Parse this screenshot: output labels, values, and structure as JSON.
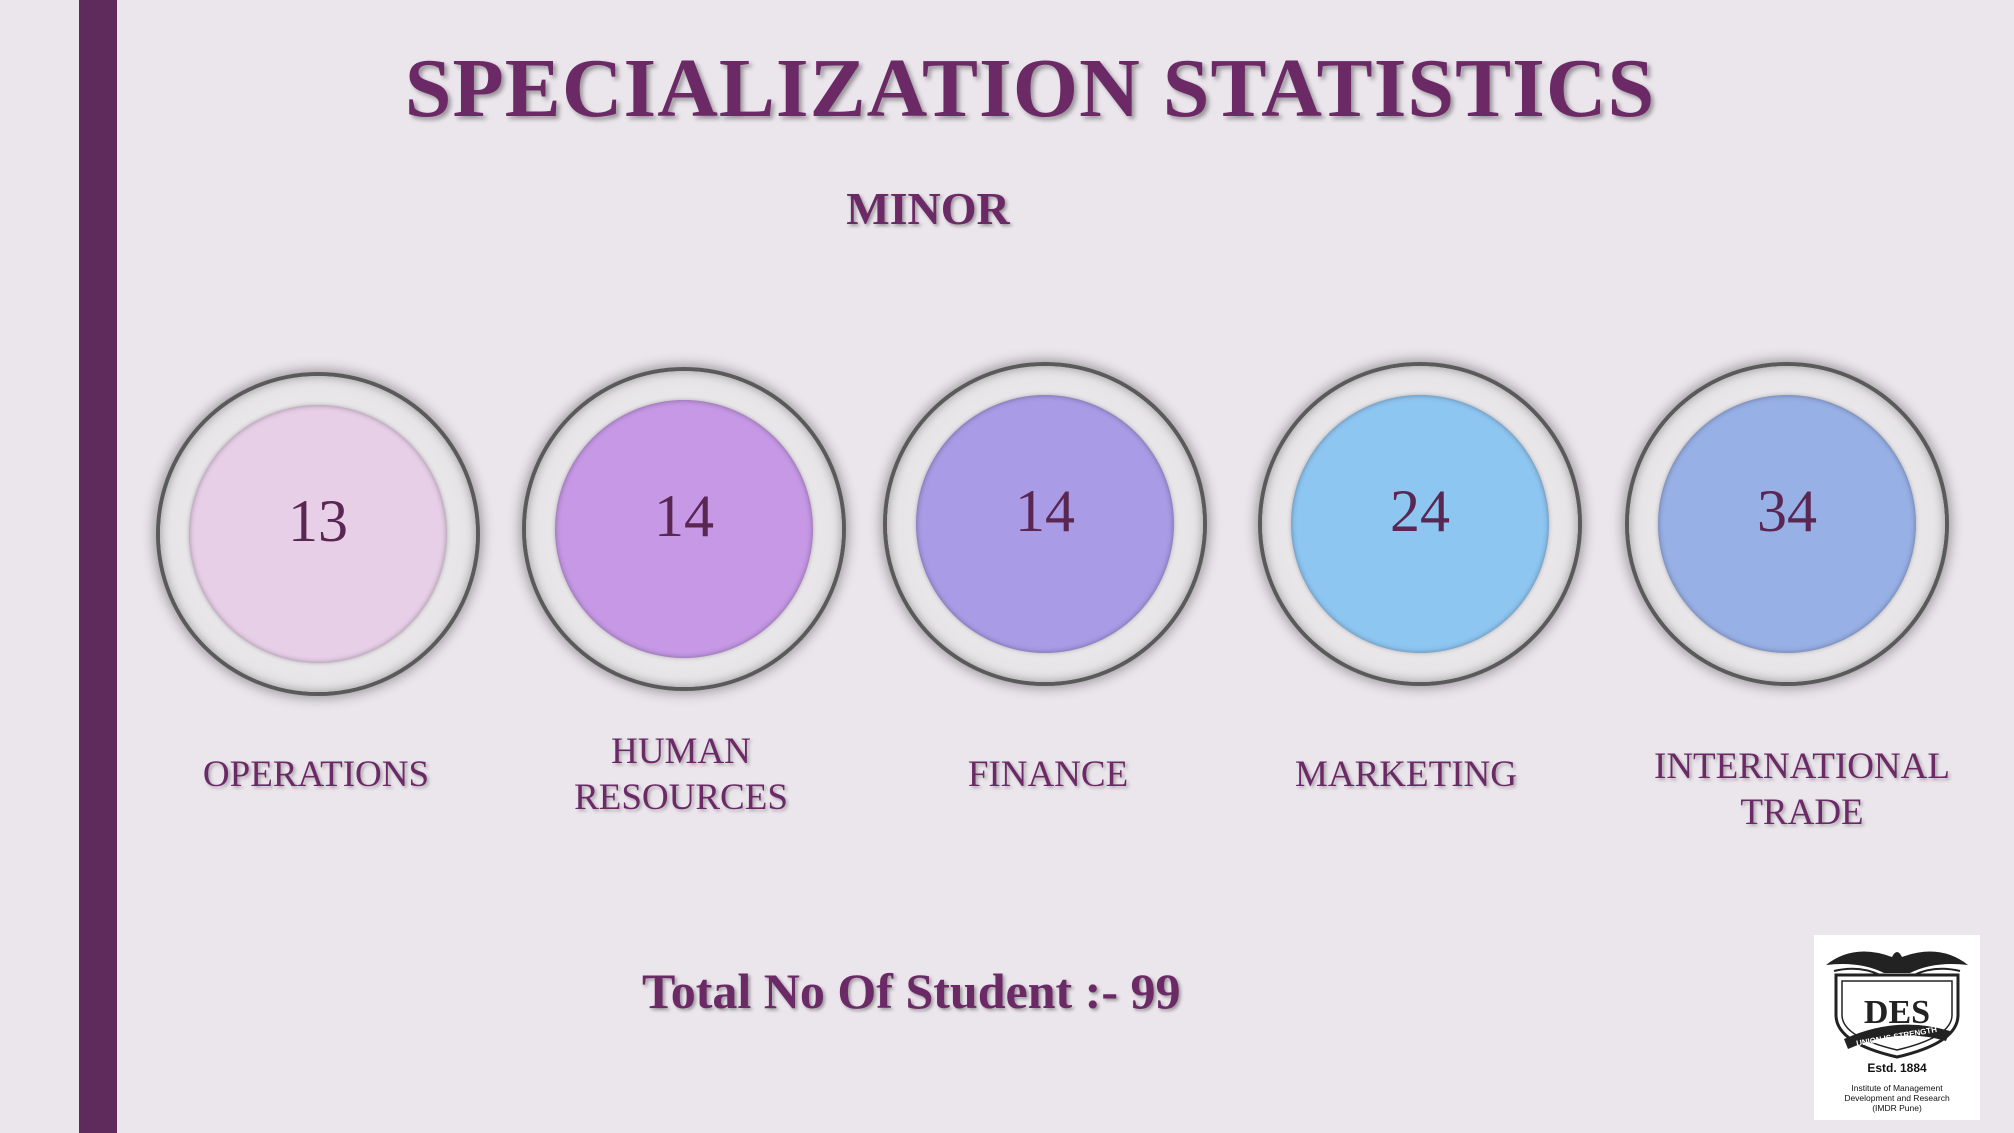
{
  "title": "SPECIALIZATION STATISTICS",
  "subtitle": "MINOR",
  "items": [
    {
      "value": "13",
      "label_lines": [
        "OPERATIONS"
      ],
      "color": "#e8cfe8"
    },
    {
      "value": "14",
      "label_lines": [
        "HUMAN",
        "RESOURCES"
      ],
      "color": "#c698e6"
    },
    {
      "value": "14",
      "label_lines": [
        "FINANCE"
      ],
      "color": "#a99be6"
    },
    {
      "value": "24",
      "label_lines": [
        "MARKETING"
      ],
      "color": "#8ec6f2"
    },
    {
      "value": "34",
      "label_lines": [
        "INTERNATIONAL",
        "TRADE"
      ],
      "color": "#97b0e6"
    }
  ],
  "total": "Total No Of Student :- 99",
  "logo": {
    "motto": "UNION IS STRENGTH",
    "estd": "Estd. 1884",
    "institute_lines": [
      "Institute of Management",
      "Development and Research",
      "(IMDR Pune)"
    ]
  },
  "colors": {
    "accent_bar": "#5f2b5d",
    "text": "#6b2a66",
    "background": "#ebe5ec"
  }
}
